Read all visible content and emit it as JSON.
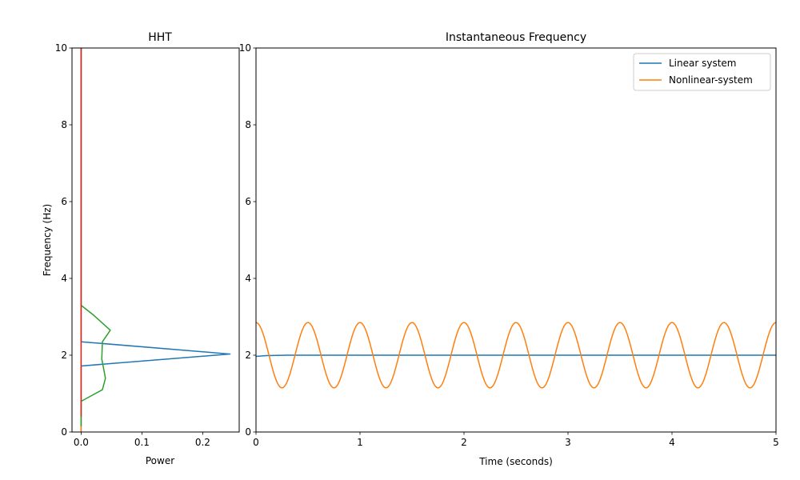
{
  "chart_data": [
    {
      "type": "line",
      "title": "HHT",
      "xlabel": "Power",
      "ylabel": "Frequency (Hz)",
      "xlim": [
        -0.015,
        0.26
      ],
      "ylim": [
        0,
        10
      ],
      "xticks": [
        "0.0",
        "0.1",
        "0.2"
      ],
      "xtick_values": [
        0.0,
        0.1,
        0.2
      ],
      "yticks": [
        "0",
        "2",
        "4",
        "6",
        "8",
        "10"
      ],
      "ytick_values": [
        0,
        2,
        4,
        6,
        8,
        10
      ],
      "grid": false,
      "series": [
        {
          "color": "#1f77b4",
          "points": [
            [
              0.0,
              0.0
            ],
            [
              0.0,
              1.72
            ],
            [
              0.245,
              2.03
            ],
            [
              0.0,
              2.35
            ],
            [
              0.0,
              10.0
            ]
          ]
        },
        {
          "color": "#ff7f0e",
          "points": [
            [
              0.0,
              0.0
            ],
            [
              0.0,
              10.0
            ]
          ]
        },
        {
          "color": "#2ca02c",
          "points": [
            [
              0.0,
              0.15
            ],
            [
              0.0,
              0.8
            ],
            [
              0.035,
              1.1
            ],
            [
              0.04,
              1.4
            ],
            [
              0.034,
              1.9
            ],
            [
              0.035,
              2.35
            ],
            [
              0.048,
              2.65
            ],
            [
              0.02,
              3.05
            ],
            [
              0.0,
              3.3
            ],
            [
              0.0,
              10.0
            ]
          ]
        },
        {
          "color": "#d62728",
          "points": [
            [
              0.0,
              0.4
            ],
            [
              0.0,
              10.0
            ]
          ]
        }
      ]
    },
    {
      "type": "line",
      "title": "Instantaneous Frequency",
      "xlabel": "Time (seconds)",
      "ylabel": "",
      "xlim": [
        0,
        5
      ],
      "ylim": [
        0,
        10
      ],
      "xticks": [
        "0",
        "1",
        "2",
        "3",
        "4",
        "5"
      ],
      "xtick_values": [
        0,
        1,
        2,
        3,
        4,
        5
      ],
      "yticks": [
        "0",
        "2",
        "4",
        "6",
        "8",
        "10"
      ],
      "ytick_values": [
        0,
        2,
        4,
        6,
        8,
        10
      ],
      "grid": false,
      "legend_position": "top-right",
      "series": [
        {
          "name": "Linear system",
          "color": "#1f77b4",
          "description": "approximately constant at 2 Hz, rising from 1.97 at t=0 to 2.0 by t≈0.3",
          "points": [
            [
              0,
              1.97
            ],
            [
              0.1,
              1.99
            ],
            [
              0.3,
              2.0
            ],
            [
              5,
              2.0
            ]
          ]
        },
        {
          "name": "Nonlinear-system",
          "color": "#ff7f0e",
          "description": "sinusoidal oscillation around 2 Hz, amplitude 0.85, period 0.5 s, peaks at t=0, 0.5, 1.0, ...",
          "mean": 2.0,
          "amplitude": 0.85,
          "period": 0.5,
          "phase_peak_at": 0.0
        }
      ]
    }
  ]
}
